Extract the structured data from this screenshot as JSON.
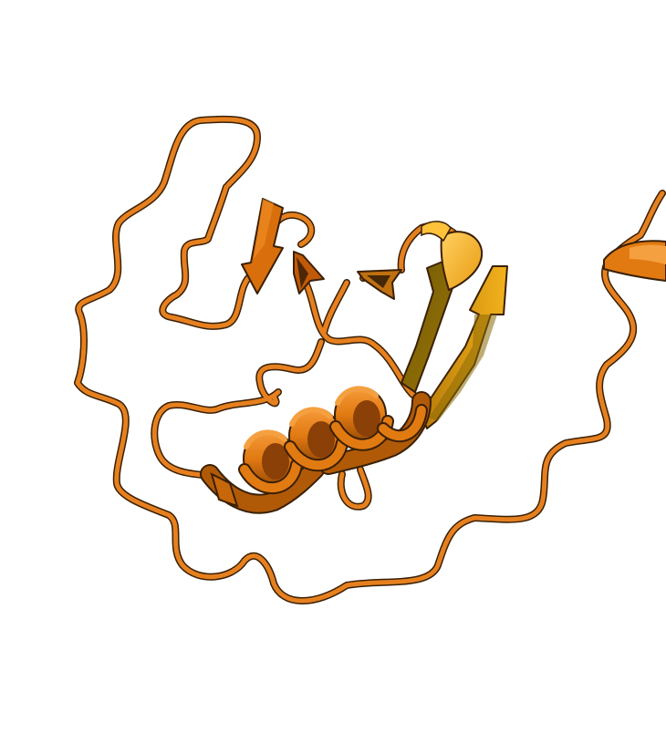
{
  "scene": {
    "background": "#ffffff",
    "subject": "protein-ribbon-cartoon",
    "colors": {
      "coil": "#e6801f",
      "coil_edge": "#3a2006",
      "helix": "#e27a12",
      "helix_dark": "#9a4a06",
      "helix_light": "#f59a3a",
      "strand_orange": "#d86f0c",
      "strand_olive": "#8a6a06",
      "strand_gold": "#d8a010",
      "strand_yellow": "#f3b21c"
    },
    "elements": [
      "coil",
      "alpha-helix",
      "beta-strand",
      "beta-strand",
      "beta-strand",
      "short-helix-turn"
    ]
  }
}
